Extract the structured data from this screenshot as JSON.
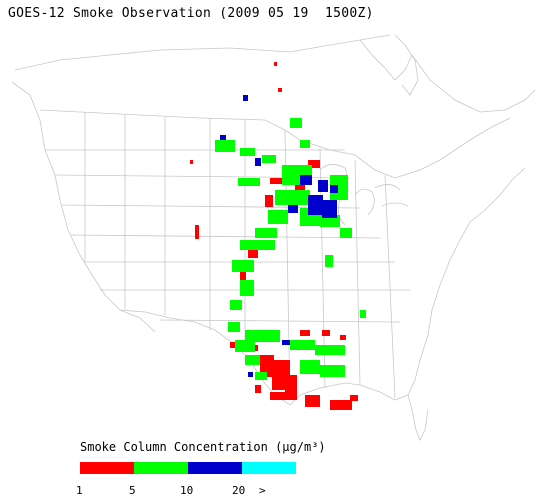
{
  "title": "GOES-12 Smoke Observation (2009 05 19  1500Z)",
  "legend": {
    "title": "Smoke Column Concentration (µg/m³)",
    "bins": [
      {
        "label": "1",
        "color": "#ff0000"
      },
      {
        "label": "5",
        "color": "#00ff00"
      },
      {
        "label": "10",
        "color": "#0000cc"
      },
      {
        "label": "20",
        "color": "#00ffff"
      }
    ],
    "overflow_label": ">"
  },
  "colors": {
    "boundary": "#c8c8c8",
    "red": "#ff0000",
    "green": "#00ff00",
    "blue": "#0000cc"
  }
}
